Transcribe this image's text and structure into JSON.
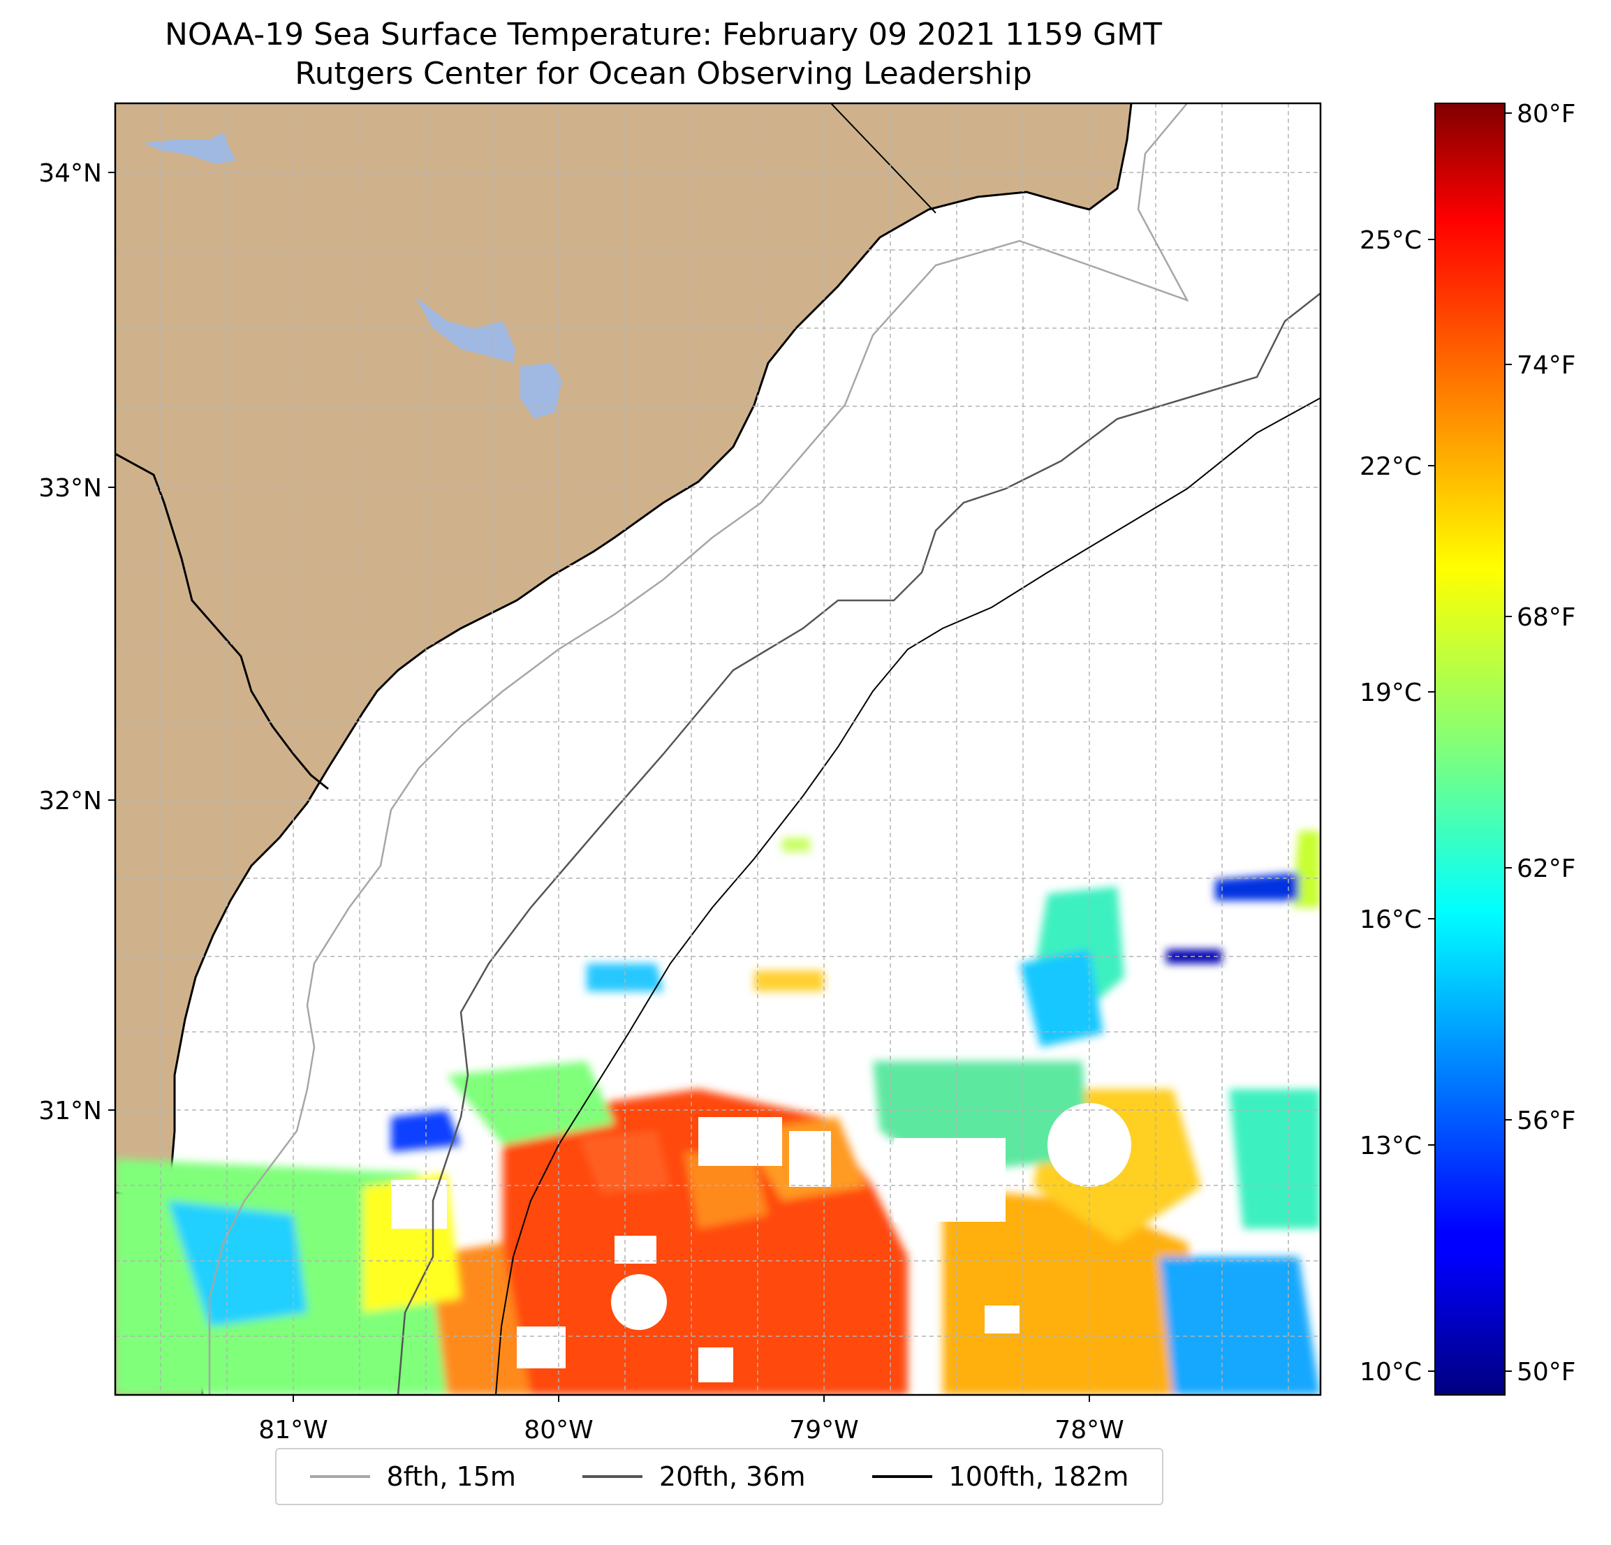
{
  "title": "NOAA-19 Sea Surface Temperature: February 09 2021 1159 GMT",
  "subtitle": "Rutgers Center for Ocean Observing Leadership",
  "colors": {
    "land": "#cfb28c",
    "lake": "#9fb9e3",
    "grid": "#b3b3b3",
    "coast": "#000000"
  },
  "map": {
    "lon_range": [
      -81.68,
      -77.13
    ],
    "lat_range": [
      30.07,
      34.22
    ],
    "lat_labels": [
      "34°N",
      "33°N",
      "32°N",
      "31°N"
    ],
    "lon_labels": [
      "81°W",
      "80°W",
      "79°W",
      "78°W"
    ]
  },
  "colorbar": {
    "colormap": "jet",
    "range_c": [
      9.6,
      26.7
    ],
    "celsius_labels": [
      "25°C",
      "22°C",
      "19°C",
      "16°C",
      "13°C",
      "10°C"
    ],
    "fahrenheit_labels": [
      "80°F",
      "74°F",
      "68°F",
      "62°F",
      "56°F",
      "50°F"
    ]
  },
  "legend": {
    "items": [
      {
        "label": "8fth, 15m",
        "color": "#a6a6a6"
      },
      {
        "label": "20fth, 36m",
        "color": "#555555"
      },
      {
        "label": "100fth, 182m",
        "color": "#000000"
      }
    ]
  }
}
